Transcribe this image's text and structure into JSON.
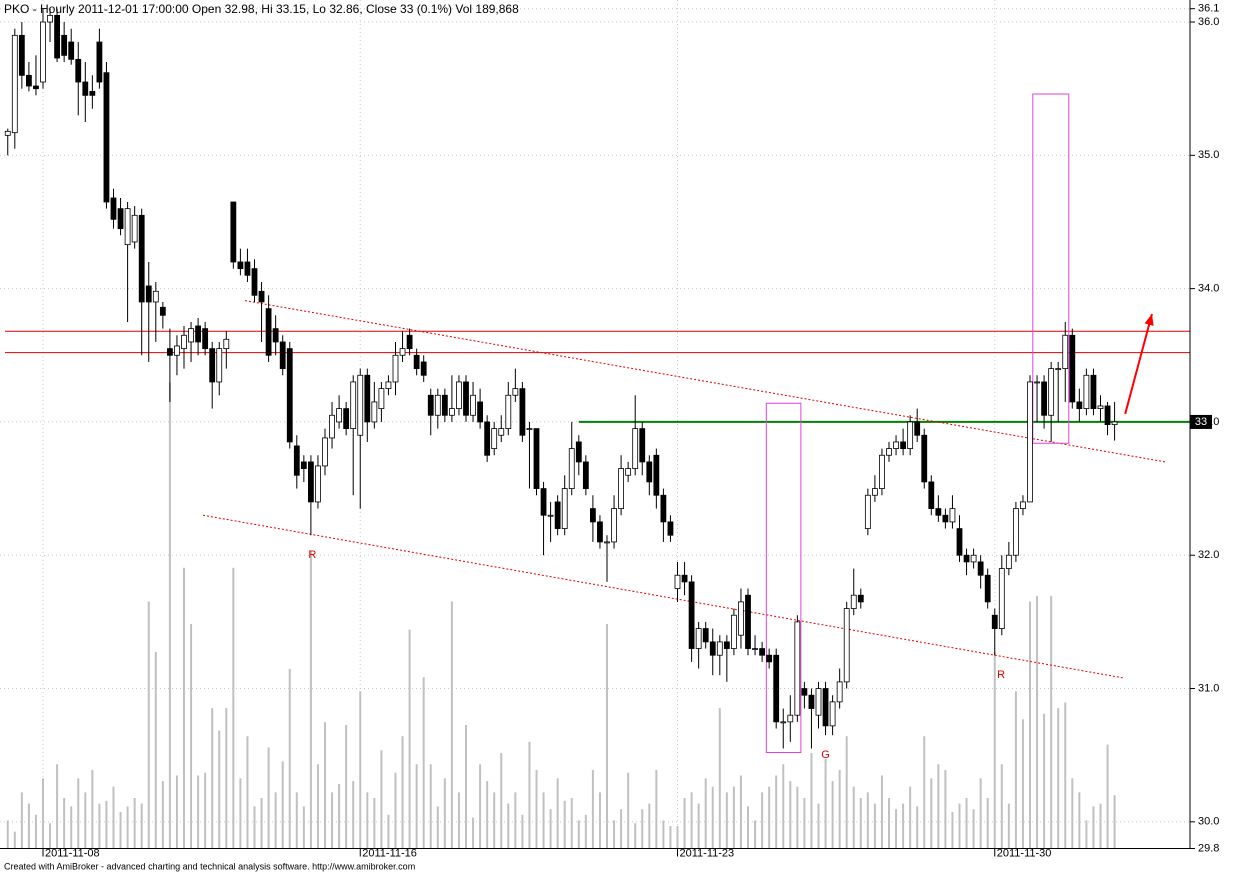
{
  "chart_data": {
    "type": "candlestick",
    "title": "PKO - Hourly 2011-12-01 17:00:00 Open 32.98, Hi 33.15, Lo 32.86, Close 33 (0.1%) Vol 189,868",
    "footer": "Created with AmiBroker - advanced charting and technical analysis software. http://www.amibroker.com",
    "categories": [
      null,
      null,
      null,
      null,
      null,
      "2011-11-08",
      null,
      null,
      null,
      null,
      null,
      null,
      null,
      null,
      null,
      null,
      null,
      null,
      null,
      null,
      null,
      null,
      null,
      null,
      null,
      null,
      null,
      null,
      null,
      null,
      null,
      null,
      null,
      null,
      null,
      null,
      null,
      null,
      null,
      null,
      null,
      null,
      null,
      null,
      null,
      null,
      null,
      null,
      null,
      null,
      "2011-11-16",
      null,
      null,
      null,
      null,
      null,
      null,
      null,
      null,
      null,
      null,
      null,
      null,
      null,
      null,
      null,
      null,
      null,
      null,
      null,
      null,
      null,
      null,
      null,
      null,
      null,
      null,
      null,
      null,
      null,
      null,
      null,
      null,
      null,
      null,
      null,
      null,
      null,
      null,
      null,
      null,
      null,
      null,
      null,
      null,
      "2011-11-23",
      null,
      null,
      null,
      null,
      null,
      null,
      null,
      null,
      null,
      null,
      null,
      null,
      null,
      null,
      null,
      null,
      null,
      null,
      null,
      null,
      null,
      null,
      null,
      null,
      null,
      null,
      null,
      null,
      null,
      null,
      null,
      null,
      null,
      null,
      null,
      null,
      null,
      null,
      null,
      null,
      null,
      null,
      null,
      null,
      "2011-11-30",
      null,
      null,
      null,
      null,
      null,
      null,
      null,
      null,
      null,
      null,
      null,
      null,
      null,
      null,
      null,
      null,
      null
    ],
    "ohlc": [
      [
        35.15,
        35.2,
        35.0,
        35.18
      ],
      [
        35.17,
        35.95,
        35.05,
        35.9
      ],
      [
        35.9,
        36.0,
        35.5,
        35.6
      ],
      [
        35.6,
        35.7,
        35.48,
        35.52
      ],
      [
        35.52,
        35.75,
        35.45,
        35.5
      ],
      [
        35.55,
        36.1,
        35.5,
        36.0
      ],
      [
        36.0,
        36.1,
        35.85,
        36.05
      ],
      [
        36.05,
        36.1,
        35.7,
        35.73
      ],
      [
        35.9,
        36.0,
        35.7,
        35.75
      ],
      [
        35.85,
        35.95,
        35.68,
        35.72
      ],
      [
        35.72,
        35.85,
        35.3,
        35.55
      ],
      [
        35.55,
        35.7,
        35.25,
        35.45
      ],
      [
        35.48,
        35.6,
        35.35,
        35.45
      ],
      [
        35.85,
        35.95,
        35.5,
        35.55
      ],
      [
        35.62,
        35.7,
        34.6,
        34.65
      ],
      [
        34.68,
        34.75,
        34.45,
        34.52
      ],
      [
        34.6,
        34.68,
        34.4,
        34.45
      ],
      [
        34.33,
        34.65,
        33.75,
        34.6
      ],
      [
        34.35,
        34.62,
        34.3,
        34.55
      ],
      [
        34.55,
        34.6,
        33.5,
        33.9
      ],
      [
        34.02,
        34.2,
        33.45,
        33.9
      ],
      [
        33.9,
        34.05,
        33.6,
        33.98
      ],
      [
        33.86,
        33.9,
        33.7,
        33.8
      ],
      [
        33.55,
        33.7,
        33.15,
        33.5
      ],
      [
        33.5,
        33.65,
        33.35,
        33.57
      ],
      [
        33.55,
        33.72,
        33.4,
        33.65
      ],
      [
        33.6,
        33.75,
        33.45,
        33.7
      ],
      [
        33.72,
        33.78,
        33.5,
        33.6
      ],
      [
        33.7,
        33.75,
        33.5,
        33.55
      ],
      [
        33.55,
        33.6,
        33.1,
        33.3
      ],
      [
        33.3,
        33.6,
        33.2,
        33.55
      ],
      [
        33.55,
        33.68,
        33.4,
        33.62
      ],
      [
        34.65,
        34.65,
        34.15,
        34.2
      ],
      [
        34.2,
        34.3,
        34.1,
        34.15
      ],
      [
        34.2,
        34.3,
        34.05,
        34.1
      ],
      [
        34.15,
        34.22,
        33.9,
        33.95
      ],
      [
        33.98,
        34.05,
        33.6,
        33.9
      ],
      [
        33.85,
        33.95,
        33.45,
        33.5
      ],
      [
        33.7,
        33.8,
        33.5,
        33.6
      ],
      [
        33.6,
        33.65,
        33.35,
        33.4
      ],
      [
        33.55,
        33.6,
        32.8,
        32.85
      ],
      [
        32.82,
        32.9,
        32.5,
        32.6
      ],
      [
        32.7,
        32.75,
        32.55,
        32.65
      ],
      [
        32.7,
        32.75,
        32.15,
        32.4
      ],
      [
        32.4,
        32.75,
        32.35,
        32.67
      ],
      [
        32.67,
        32.95,
        32.6,
        32.88
      ],
      [
        32.88,
        33.15,
        32.8,
        33.05
      ],
      [
        33.0,
        33.2,
        32.95,
        33.1
      ],
      [
        33.1,
        33.15,
        32.9,
        32.95
      ],
      [
        32.95,
        33.35,
        32.45,
        33.3
      ],
      [
        32.9,
        33.4,
        32.35,
        33.35
      ],
      [
        33.35,
        33.4,
        32.85,
        33.0
      ],
      [
        33.0,
        33.3,
        32.95,
        33.15
      ],
      [
        33.1,
        33.3,
        33.0,
        33.25
      ],
      [
        33.25,
        33.35,
        33.2,
        33.3
      ],
      [
        33.3,
        33.6,
        33.2,
        33.5
      ],
      [
        33.5,
        33.68,
        33.45,
        33.55
      ],
      [
        33.65,
        33.7,
        33.5,
        33.55
      ],
      [
        33.5,
        33.55,
        33.35,
        33.4
      ],
      [
        33.45,
        33.5,
        33.3,
        33.35
      ],
      [
        33.2,
        33.25,
        32.9,
        33.05
      ],
      [
        33.05,
        33.25,
        32.95,
        33.2
      ],
      [
        33.2,
        33.25,
        33.0,
        33.05
      ],
      [
        33.05,
        33.35,
        33.0,
        33.1
      ],
      [
        33.1,
        33.35,
        33.05,
        33.3
      ],
      [
        33.3,
        33.35,
        33.0,
        33.05
      ],
      [
        33.05,
        33.3,
        33.0,
        33.2
      ],
      [
        33.15,
        33.25,
        32.95,
        33.0
      ],
      [
        33.0,
        33.05,
        32.7,
        32.75
      ],
      [
        32.8,
        33.0,
        32.75,
        32.95
      ],
      [
        32.9,
        33.05,
        32.85,
        32.95
      ],
      [
        32.95,
        33.3,
        32.9,
        33.2
      ],
      [
        33.2,
        33.4,
        33.15,
        33.25
      ],
      [
        33.25,
        33.3,
        32.85,
        32.9
      ],
      [
        32.95,
        33.0,
        32.5,
        32.95
      ],
      [
        32.95,
        32.95,
        32.45,
        32.5
      ],
      [
        32.5,
        32.55,
        32.0,
        32.3
      ],
      [
        32.3,
        32.4,
        32.1,
        32.3
      ],
      [
        32.4,
        32.45,
        32.15,
        32.2
      ],
      [
        32.2,
        32.6,
        32.15,
        32.5
      ],
      [
        32.5,
        33.0,
        32.45,
        32.8
      ],
      [
        32.85,
        32.9,
        32.6,
        32.7
      ],
      [
        32.7,
        32.75,
        32.45,
        32.5
      ],
      [
        32.35,
        32.45,
        32.1,
        32.25
      ],
      [
        32.25,
        32.3,
        32.05,
        32.1
      ],
      [
        32.1,
        32.15,
        31.8,
        32.1
      ],
      [
        32.1,
        32.45,
        32.05,
        32.35
      ],
      [
        32.35,
        32.75,
        32.3,
        32.65
      ],
      [
        32.6,
        32.7,
        32.55,
        32.65
      ],
      [
        32.65,
        33.2,
        32.6,
        32.95
      ],
      [
        32.95,
        33.0,
        32.6,
        32.7
      ],
      [
        32.7,
        32.75,
        32.45,
        32.55
      ],
      [
        32.75,
        32.8,
        32.35,
        32.45
      ],
      [
        32.45,
        32.5,
        32.1,
        32.25
      ],
      [
        32.25,
        32.3,
        32.1,
        32.15
      ],
      [
        31.75,
        31.95,
        31.65,
        31.85
      ],
      [
        31.85,
        31.95,
        31.7,
        31.8
      ],
      [
        31.8,
        31.85,
        31.2,
        31.3
      ],
      [
        31.3,
        31.5,
        31.15,
        31.45
      ],
      [
        31.45,
        31.5,
        31.3,
        31.35
      ],
      [
        31.35,
        31.45,
        31.1,
        31.25
      ],
      [
        31.25,
        31.4,
        31.1,
        31.35
      ],
      [
        31.35,
        31.4,
        31.05,
        31.3
      ],
      [
        31.3,
        31.6,
        31.25,
        31.55
      ],
      [
        31.4,
        31.75,
        31.3,
        31.65
      ],
      [
        31.7,
        31.75,
        31.25,
        31.3
      ],
      [
        31.3,
        31.4,
        31.25,
        31.3
      ],
      [
        31.3,
        31.35,
        31.2,
        31.25
      ],
      [
        31.25,
        31.3,
        31.15,
        31.2
      ],
      [
        31.25,
        31.3,
        30.7,
        30.75
      ],
      [
        30.75,
        30.85,
        30.55,
        30.75
      ],
      [
        30.75,
        30.95,
        30.6,
        30.8
      ],
      [
        30.8,
        31.55,
        30.75,
        31.5
      ],
      [
        31.0,
        31.05,
        30.85,
        30.95
      ],
      [
        30.95,
        31.0,
        30.55,
        30.85
      ],
      [
        30.8,
        31.05,
        30.7,
        31.0
      ],
      [
        31.0,
        31.05,
        30.65,
        30.72
      ],
      [
        30.72,
        30.95,
        30.65,
        30.9
      ],
      [
        30.9,
        31.15,
        30.85,
        31.05
      ],
      [
        31.05,
        31.65,
        31.0,
        31.6
      ],
      [
        31.6,
        31.9,
        31.55,
        31.7
      ],
      [
        31.7,
        31.75,
        31.6,
        31.65
      ],
      [
        32.2,
        32.5,
        32.15,
        32.45
      ],
      [
        32.45,
        32.6,
        32.4,
        32.5
      ],
      [
        32.5,
        32.8,
        32.45,
        32.75
      ],
      [
        32.75,
        32.85,
        32.7,
        32.8
      ],
      [
        32.8,
        32.9,
        32.75,
        32.85
      ],
      [
        32.85,
        32.95,
        32.75,
        32.8
      ],
      [
        32.8,
        33.05,
        32.75,
        33.0
      ],
      [
        33.0,
        33.1,
        32.85,
        32.9
      ],
      [
        32.9,
        32.95,
        32.5,
        32.55
      ],
      [
        32.55,
        32.6,
        32.3,
        32.35
      ],
      [
        32.35,
        32.45,
        32.25,
        32.3
      ],
      [
        32.3,
        32.35,
        32.2,
        32.25
      ],
      [
        32.25,
        32.45,
        32.2,
        32.35
      ],
      [
        32.2,
        32.3,
        31.95,
        32.0
      ],
      [
        32.0,
        32.05,
        31.85,
        31.95
      ],
      [
        31.95,
        32.05,
        31.9,
        32.0
      ],
      [
        31.95,
        32.0,
        31.75,
        31.85
      ],
      [
        31.85,
        31.9,
        31.6,
        31.65
      ],
      [
        31.55,
        31.6,
        31.25,
        31.45
      ],
      [
        31.45,
        32.0,
        31.4,
        31.9
      ],
      [
        31.9,
        32.1,
        31.85,
        32.0
      ],
      [
        32.0,
        32.4,
        31.95,
        32.35
      ],
      [
        32.35,
        32.45,
        32.3,
        32.4
      ],
      [
        32.4,
        33.35,
        32.4,
        33.3
      ],
      [
        33.3,
        33.35,
        33.0,
        33.3
      ],
      [
        33.3,
        33.35,
        32.95,
        33.05
      ],
      [
        33.05,
        33.45,
        32.85,
        33.4
      ],
      [
        33.4,
        33.45,
        33.0,
        33.4
      ],
      [
        33.4,
        33.75,
        33.15,
        33.65
      ],
      [
        33.65,
        33.7,
        33.1,
        33.15
      ],
      [
        33.15,
        33.25,
        33.0,
        33.1
      ],
      [
        33.1,
        33.4,
        33.05,
        33.35
      ],
      [
        33.35,
        33.4,
        33.05,
        33.1
      ],
      [
        33.1,
        33.2,
        33.0,
        33.12
      ],
      [
        33.12,
        33.15,
        32.9,
        32.98
      ],
      [
        32.98,
        33.15,
        32.86,
        33
      ]
    ],
    "volume": [
      100000,
      60000,
      200000,
      160000,
      120000,
      250000,
      90000,
      300000,
      180000,
      150000,
      250000,
      200000,
      280000,
      160000,
      170000,
      220000,
      130000,
      150000,
      180000,
      160000,
      880000,
      700000,
      240000,
      1660000,
      260000,
      1000000,
      800000,
      260000,
      270000,
      500000,
      420000,
      500000,
      1000000,
      250000,
      400000,
      150000,
      180000,
      360000,
      200000,
      310000,
      640000,
      200000,
      150000,
      1060000,
      300000,
      450000,
      200000,
      230000,
      440000,
      240000,
      560000,
      200000,
      180000,
      350000,
      120000,
      270000,
      400000,
      780000,
      300000,
      610000,
      300000,
      150000,
      250000,
      880000,
      200000,
      440000,
      110000,
      300000,
      240000,
      200000,
      340000,
      160000,
      200000,
      120000,
      380000,
      280000,
      200000,
      140000,
      250000,
      170000,
      180000,
      100000,
      120000,
      280000,
      200000,
      800000,
      100000,
      140000,
      270000,
      90000,
      140000,
      160000,
      280000,
      100000,
      80000,
      80000,
      180000,
      200000,
      160000,
      250000,
      220000,
      500000,
      200000,
      220000,
      260000,
      150000,
      100000,
      200000,
      220000,
      260000,
      300000,
      240000,
      220000,
      180000,
      340000,
      160000,
      320000,
      240000,
      280000,
      400000,
      220000,
      180000,
      200000,
      160000,
      260000,
      180000,
      140000,
      160000,
      220000,
      150000,
      400000,
      250000,
      300000,
      280000,
      130000,
      160000,
      180000,
      140000,
      250000,
      180000,
      700000,
      300000,
      160000,
      560000,
      460000,
      880000,
      900000,
      480000,
      900000,
      500000,
      520000,
      250000,
      200000,
      100000,
      150000,
      160000,
      370000,
      189868
    ],
    "up_color": "#ffffff",
    "down_color": "#000000",
    "volume_color": "#c0c0c0",
    "ylim": [
      29.8,
      36.1
    ],
    "yticks": [
      36.1,
      {
        "value": 36,
        "label": "36.0"
      },
      {
        "value": 35,
        "label": "35.0"
      },
      {
        "value": 34,
        "label": "34.0"
      },
      {
        "value": 33,
        "label": "33.0"
      },
      {
        "value": 32,
        "label": "32.0"
      },
      {
        "value": 31,
        "label": "31.0"
      },
      {
        "value": 30,
        "label": "30.0"
      },
      29.8
    ],
    "grid": true,
    "hlines": [
      {
        "value": 33.68,
        "color": "#e00000"
      },
      {
        "value": 33.52,
        "color": "#e00000"
      },
      {
        "value": 33.0,
        "color": "#008000",
        "from": 81
      }
    ],
    "trendlines": [
      {
        "points": [
          [
            33.65,
            33.91
          ],
          [
            164.2,
            32.7
          ]
        ],
        "color": "#e00000"
      },
      {
        "points": [
          [
            27.7,
            32.3
          ],
          [
            158.2,
            31.08
          ]
        ],
        "color": "#e00000"
      }
    ],
    "boxes": [
      {
        "x": [
          107.6,
          112.5
        ],
        "y": [
          30.52,
          33.14
        ],
        "color": "#e040e0"
      },
      {
        "x": [
          145.4,
          150.5
        ],
        "y": [
          32.84,
          35.46
        ],
        "color": "#e040e0"
      }
    ],
    "labels": [
      {
        "text": "R",
        "x": 43.2,
        "y": 32.0,
        "color": "#e00000"
      },
      {
        "text": "R",
        "x": 140.9,
        "y": 31.1,
        "color": "#e00000"
      },
      {
        "text": "G",
        "x": 116,
        "y": 30.5,
        "color": "#e00000"
      }
    ],
    "arrow": {
      "points": [
        [
          158.5,
          33.06
        ],
        [
          162.3,
          33.81
        ]
      ],
      "color": "#ff0000"
    }
  }
}
